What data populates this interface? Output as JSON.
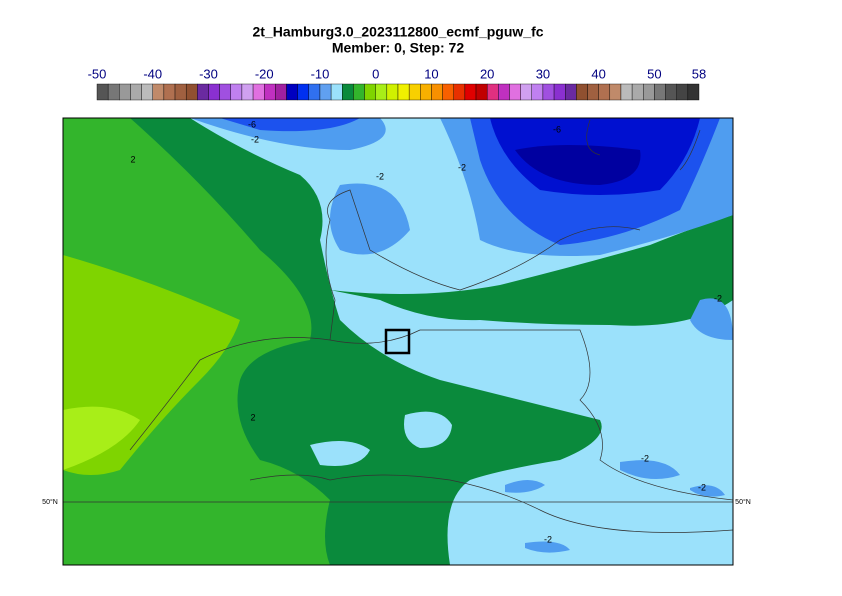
{
  "header": {
    "title": "2t_Hamburg3.0_2023112800_ecmf_pguw_fc",
    "subtitle": "Member: 0, Step: 72"
  },
  "colorbar": {
    "min": -50,
    "max": 58,
    "step": 2,
    "ticks": [
      -50,
      -40,
      -30,
      -20,
      -10,
      0,
      10,
      20,
      30,
      40,
      50,
      58
    ]
  },
  "contour_labels": [
    "-6",
    "-2",
    "2",
    "-2",
    "-2",
    "-6",
    "-2",
    "2",
    "-2",
    "-2",
    "-2"
  ],
  "lat_labels": [
    "50°N",
    "50°N"
  ]
}
